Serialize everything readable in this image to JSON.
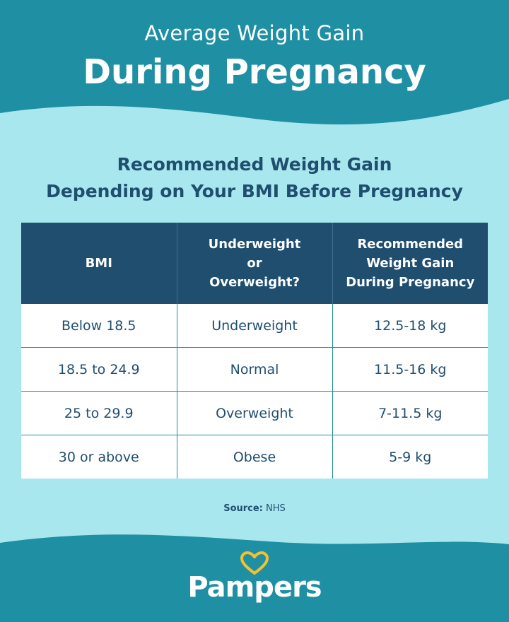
{
  "header": {
    "subtitle": "Average Weight Gain",
    "title": "During Pregnancy"
  },
  "table_title": {
    "line1": "Recommended Weight Gain",
    "line2": "Depending on Your BMI Before Pregnancy"
  },
  "table": {
    "columns": [
      [
        "BMI"
      ],
      [
        "Underweight",
        "or",
        "Overweight?"
      ],
      [
        "Recommended",
        "Weight Gain",
        "During Pregnancy"
      ]
    ],
    "rows": [
      [
        "Below 18.5",
        "Underweight",
        "12.5-18 kg"
      ],
      [
        "18.5 to 24.9",
        "Normal",
        "11.5-16 kg"
      ],
      [
        "25 to 29.9",
        "Overweight",
        "7-11.5 kg"
      ],
      [
        "30 or above",
        "Obese",
        "5-9 kg"
      ]
    ]
  },
  "source": {
    "label": "Source:",
    "value": "NHS"
  },
  "logo": {
    "text": "Pampers"
  },
  "colors": {
    "teal": "#1f8fa3",
    "light_blue": "#a9e7ee",
    "navy": "#1f4e6f",
    "logo_heart": "#f2c230"
  }
}
